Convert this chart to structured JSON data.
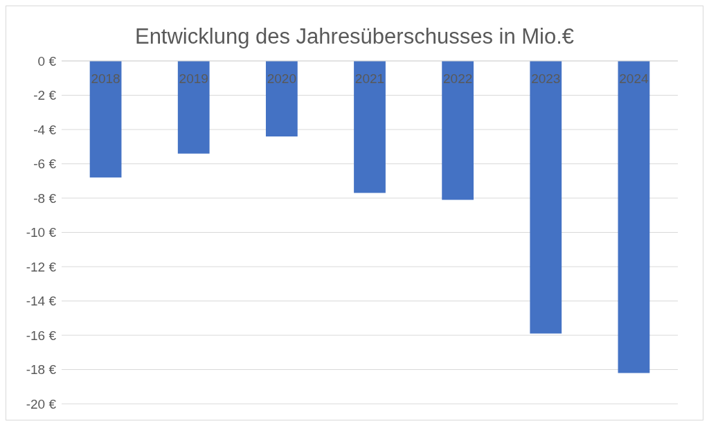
{
  "chart_data": {
    "type": "bar",
    "title": "Entwicklung des Jahresüberschusses in Mio.€",
    "categories": [
      "2018",
      "2019",
      "2020",
      "2021",
      "2022",
      "2023",
      "2024"
    ],
    "values": [
      -6.8,
      -5.4,
      -4.4,
      -7.7,
      -8.1,
      -15.9,
      -18.2
    ],
    "color": "#4472c4",
    "ylim": [
      -20,
      0
    ],
    "yticks": [
      {
        "value": 0,
        "label": "0 €"
      },
      {
        "value": -2,
        "label": "-2 €"
      },
      {
        "value": -4,
        "label": "-4 €"
      },
      {
        "value": -6,
        "label": "-6 €"
      },
      {
        "value": -8,
        "label": "-8 €"
      },
      {
        "value": -10,
        "label": "-10 €"
      },
      {
        "value": -12,
        "label": "-12 €"
      },
      {
        "value": -14,
        "label": "-14 €"
      },
      {
        "value": -16,
        "label": "-16 €"
      },
      {
        "value": -18,
        "label": "-18 €"
      },
      {
        "value": -20,
        "label": "-20 €"
      }
    ],
    "grid": "y",
    "legend": false
  }
}
